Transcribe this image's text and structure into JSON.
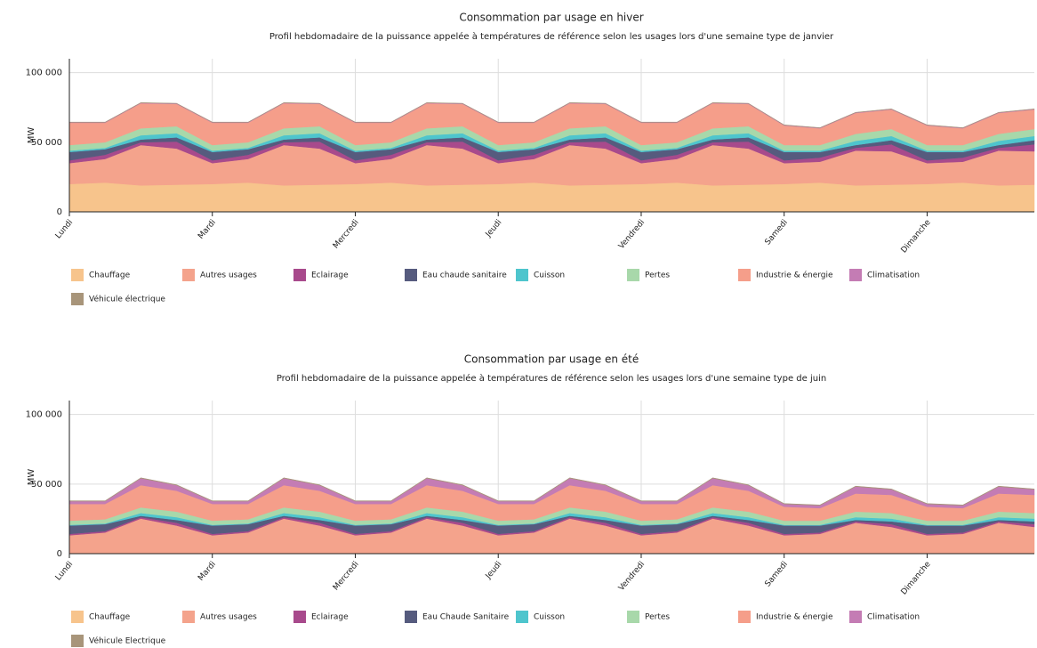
{
  "chart_data": [
    {
      "type": "stacked_area",
      "title": "Consommation par usage en hiver",
      "subtitle": "Profil hebdomadaire de la puissance appelée à températures de référence selon les usages lors d'une semaine type de janvier",
      "ylabel": "MW",
      "ylim": [
        0,
        110000
      ],
      "yticks": [
        0,
        {
          "value": 50000,
          "label": "50 000"
        },
        {
          "value": 100000,
          "label": "100 000"
        }
      ],
      "grid": true,
      "categories": [
        "Lundi",
        null,
        null,
        null,
        "Mardi",
        null,
        null,
        null,
        "Mercredi",
        null,
        null,
        null,
        "Jeudi",
        null,
        null,
        null,
        "Vendredi",
        null,
        null,
        null,
        "Samedi",
        null,
        null,
        null,
        "Dimanche",
        null,
        null,
        null
      ],
      "series": [
        {
          "name": "Chauffage",
          "color": "#f7c48c",
          "values": [
            20000,
            21000,
            19000,
            19500,
            20000,
            21000,
            19000,
            19500,
            20000,
            21000,
            19000,
            19500,
            20000,
            21000,
            19000,
            19500,
            20000,
            21000,
            19000,
            19500,
            20000,
            21000,
            19000,
            19500,
            20000,
            21000,
            19000,
            19500
          ]
        },
        {
          "name": "Autres usages",
          "color": "#f4a38c",
          "values": [
            15000,
            17000,
            29000,
            26000,
            15000,
            17000,
            29000,
            26000,
            15000,
            17000,
            29000,
            26000,
            15000,
            17000,
            29000,
            26000,
            15000,
            17000,
            29000,
            26000,
            15000,
            15000,
            25000,
            24000,
            15000,
            15000,
            25000,
            24000
          ]
        },
        {
          "name": "Eclairage",
          "color": "#a84a8c",
          "values": [
            2000,
            3000,
            2000,
            5000,
            2000,
            3000,
            2000,
            5000,
            2000,
            3000,
            2000,
            5000,
            2000,
            3000,
            2000,
            5000,
            2000,
            3000,
            2000,
            5000,
            2000,
            3000,
            2000,
            5000,
            2000,
            3000,
            2000,
            5000
          ]
        },
        {
          "name": "Eau chaude sanitaire",
          "color": "#565b7e",
          "values": [
            6000,
            4000,
            2000,
            3000,
            6000,
            4000,
            2000,
            3000,
            6000,
            4000,
            2000,
            3000,
            6000,
            4000,
            2000,
            3000,
            6000,
            4000,
            2000,
            3000,
            6000,
            4000,
            2000,
            3000,
            6000,
            4000,
            2000,
            3000
          ]
        },
        {
          "name": "Cuisson",
          "color": "#4ec5cd",
          "values": [
            1000,
            1000,
            3000,
            3000,
            1000,
            1000,
            3000,
            3000,
            1000,
            1000,
            3000,
            3000,
            1000,
            1000,
            3000,
            3000,
            1000,
            1000,
            3000,
            3000,
            1000,
            1000,
            3000,
            3000,
            1000,
            1000,
            3000,
            3000
          ]
        },
        {
          "name": "Pertes",
          "color": "#a8d8aa",
          "values": [
            4000,
            4000,
            5000,
            5000,
            4000,
            4000,
            5000,
            5000,
            4000,
            4000,
            5000,
            5000,
            4000,
            4000,
            5000,
            5000,
            4000,
            4000,
            5000,
            5000,
            4000,
            4000,
            5000,
            5000,
            4000,
            4000,
            5000,
            5000
          ]
        },
        {
          "name": "Industrie & énergie",
          "color": "#f59e8a",
          "values": [
            16000,
            14000,
            18000,
            16000,
            16000,
            14000,
            18000,
            16000,
            16000,
            14000,
            18000,
            16000,
            16000,
            14000,
            18000,
            16000,
            16000,
            14000,
            18000,
            16000,
            14000,
            12000,
            15000,
            14000,
            14000,
            12000,
            15000,
            14000
          ]
        },
        {
          "name": "Climatisation",
          "color": "#c47cb4",
          "values": [
            300,
            300,
            300,
            300,
            300,
            300,
            300,
            300,
            300,
            300,
            300,
            300,
            300,
            300,
            300,
            300,
            300,
            300,
            300,
            300,
            300,
            300,
            300,
            300,
            300,
            300,
            300,
            300
          ]
        },
        {
          "name": "Véhicule électrique",
          "color": "#a8957a",
          "values": [
            200,
            200,
            200,
            200,
            200,
            200,
            200,
            200,
            200,
            200,
            200,
            200,
            200,
            200,
            200,
            200,
            200,
            200,
            200,
            200,
            200,
            200,
            200,
            200,
            200,
            200,
            200,
            200
          ]
        }
      ]
    },
    {
      "type": "stacked_area",
      "title": "Consommation par usage en été",
      "subtitle": "Profil hebdomadaire de la puissance appelée à températures de référence selon les usages lors d'une semaine type de juin",
      "ylabel": "MW",
      "ylim": [
        0,
        110000
      ],
      "yticks": [
        0,
        {
          "value": 50000,
          "label": "50 000"
        },
        {
          "value": 100000,
          "label": "100 000"
        }
      ],
      "grid": true,
      "categories": [
        "Lundi",
        null,
        null,
        null,
        "Mardi",
        null,
        null,
        null,
        "Mercredi",
        null,
        null,
        null,
        "Jeudi",
        null,
        null,
        null,
        "Vendredi",
        null,
        null,
        null,
        "Samedi",
        null,
        null,
        null,
        "Dimanche",
        null,
        null,
        null
      ],
      "series": [
        {
          "name": "Chauffage",
          "color": "#f7c48c",
          "values": [
            200,
            200,
            200,
            200,
            200,
            200,
            200,
            200,
            200,
            200,
            200,
            200,
            200,
            200,
            200,
            200,
            200,
            200,
            200,
            200,
            200,
            200,
            200,
            200,
            200,
            200,
            200,
            200
          ]
        },
        {
          "name": "Autres usages",
          "color": "#f4a38c",
          "values": [
            13000,
            15000,
            25000,
            20000,
            13000,
            15000,
            25000,
            20000,
            13000,
            15000,
            25000,
            20000,
            13000,
            15000,
            25000,
            20000,
            13000,
            15000,
            25000,
            20000,
            13000,
            14000,
            22000,
            19000,
            13000,
            14000,
            22000,
            19000
          ]
        },
        {
          "name": "Eclairage",
          "color": "#a84a8c",
          "values": [
            1000,
            1000,
            1000,
            2000,
            1000,
            1000,
            1000,
            2000,
            1000,
            1000,
            1000,
            2000,
            1000,
            1000,
            1000,
            2000,
            1000,
            1000,
            1000,
            2000,
            1000,
            1000,
            1000,
            2000,
            1000,
            1000,
            1000,
            2000
          ]
        },
        {
          "name": "Eau Chaude Sanitaire",
          "color": "#565b7e",
          "values": [
            6000,
            5000,
            1000,
            2000,
            6000,
            5000,
            1000,
            2000,
            6000,
            5000,
            1000,
            2000,
            6000,
            5000,
            1000,
            2000,
            6000,
            5000,
            1000,
            2000,
            6000,
            5000,
            1000,
            2000,
            6000,
            5000,
            1000,
            2000
          ]
        },
        {
          "name": "Cuisson",
          "color": "#4ec5cd",
          "values": [
            500,
            500,
            2000,
            2000,
            500,
            500,
            2000,
            2000,
            500,
            500,
            2000,
            2000,
            500,
            500,
            2000,
            2000,
            500,
            500,
            2000,
            2000,
            500,
            500,
            2000,
            2000,
            500,
            500,
            2000,
            2000
          ]
        },
        {
          "name": "Pertes",
          "color": "#a8d8aa",
          "values": [
            3000,
            3000,
            4000,
            4000,
            3000,
            3000,
            4000,
            4000,
            3000,
            3000,
            4000,
            4000,
            3000,
            3000,
            4000,
            4000,
            3000,
            3000,
            4000,
            4000,
            3000,
            3000,
            4000,
            4000,
            3000,
            3000,
            4000,
            4000
          ]
        },
        {
          "name": "Industrie & énergie",
          "color": "#f59e8a",
          "values": [
            12000,
            11000,
            16000,
            15000,
            12000,
            11000,
            16000,
            15000,
            12000,
            11000,
            16000,
            15000,
            12000,
            11000,
            16000,
            15000,
            12000,
            11000,
            16000,
            15000,
            10000,
            9000,
            13000,
            13000,
            10000,
            9000,
            13000,
            13000
          ]
        },
        {
          "name": "Climatisation",
          "color": "#c47cb4",
          "values": [
            2000,
            2000,
            5000,
            4000,
            2000,
            2000,
            5000,
            4000,
            2000,
            2000,
            5000,
            4000,
            2000,
            2000,
            5000,
            4000,
            2000,
            2000,
            5000,
            4000,
            2000,
            2000,
            5000,
            4000,
            2000,
            2000,
            5000,
            4000
          ]
        },
        {
          "name": "Véhicule Electrique",
          "color": "#a8957a",
          "values": [
            300,
            300,
            300,
            300,
            300,
            300,
            300,
            300,
            300,
            300,
            300,
            300,
            300,
            300,
            300,
            300,
            300,
            300,
            300,
            300,
            300,
            300,
            300,
            300,
            300,
            300,
            300,
            300
          ]
        }
      ]
    }
  ]
}
